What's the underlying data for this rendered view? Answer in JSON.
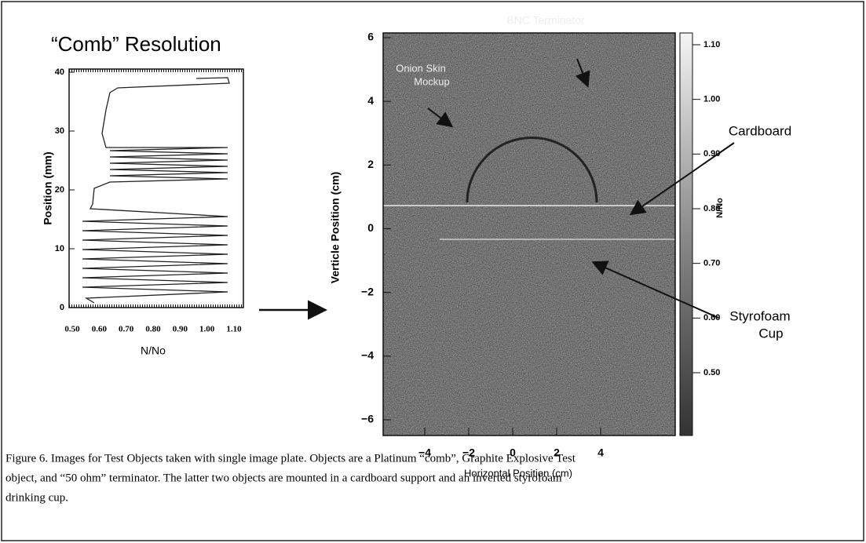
{
  "left_panel": {
    "title": "“Comb” Resolution",
    "y_label": "Position (mm)",
    "x_label": "N/No",
    "y_ticks": [
      "0",
      "10",
      "20",
      "30",
      "40"
    ],
    "x_ticks": [
      "0.50",
      "0.60",
      "0.70",
      "0.80",
      "0.90",
      "1.00",
      "1.10"
    ]
  },
  "right_panel": {
    "y_label": "Verticle Position (cm)",
    "x_label": "Horizontal Position (cm)",
    "y_ticks": [
      "6",
      "4",
      "2",
      "0",
      "−2",
      "−4",
      "−6"
    ],
    "x_ticks": [
      "−4",
      "−2",
      "0",
      "2",
      "4"
    ],
    "colorbar_label": "N/No",
    "colorbar_ticks": [
      "1.10",
      "1.00",
      "0.90",
      "0.80",
      "0.70",
      "0.60",
      "0.50"
    ],
    "annotations": [
      "BNC Terminator",
      "Onion Skin",
      "Mockup",
      "Cardboard",
      "Styrofoam",
      "Cup"
    ]
  },
  "caption": {
    "lines": [
      "Figure 6.   Images for Test Objects taken with single image plate.  Objects are a Platinum “comb”, Graphite Explosive Test",
      "object, and “50 ohm” terminator.  The latter two objects are mounted in a cardboard support and an inverted styrofoam",
      "drinking cup."
    ]
  }
}
